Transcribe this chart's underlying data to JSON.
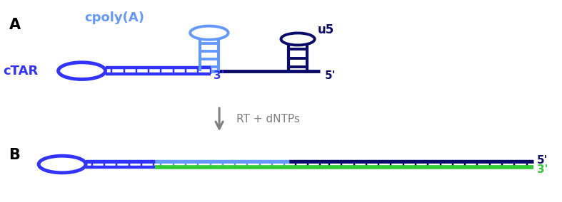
{
  "fig_width": 7.87,
  "fig_height": 2.84,
  "dpi": 100,
  "label_A": "A",
  "label_B": "B",
  "cpoly_label": "cpoly(A)",
  "u5_label": "u5",
  "cTAR_label": "cTAR",
  "prime3_A": "3'",
  "prime5_A": "5'",
  "prime5_B": "5'",
  "prime3_B": "3'",
  "arrow_label": "RT + dNTPs",
  "color_blue": "#3333ff",
  "color_light_blue": "#6699ff",
  "color_navy": "#0a0a6a",
  "color_green": "#33cc33",
  "color_gray": "#808080",
  "color_white": "#ffffff",
  "xlim": [
    0,
    10
  ],
  "ylim": [
    0,
    10
  ]
}
